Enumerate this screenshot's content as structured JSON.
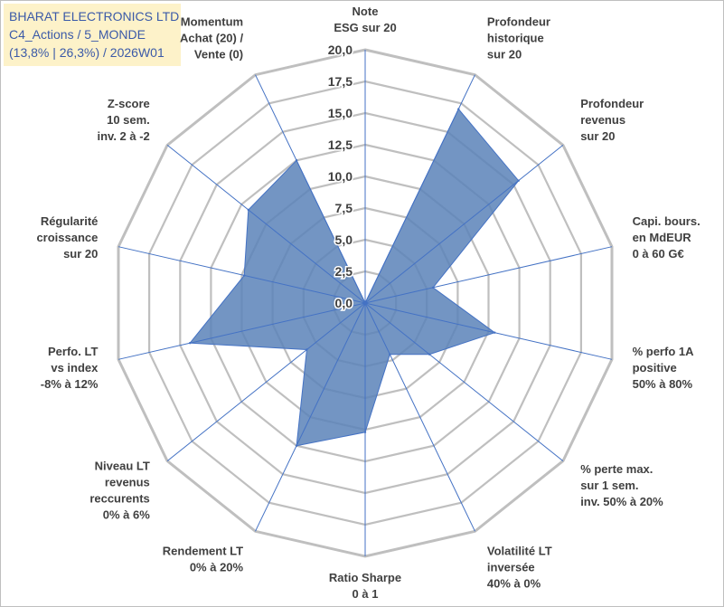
{
  "title_box": {
    "line1": "BHARAT ELECTRONICS LTD",
    "line2": "C4_Actions / 5_MONDE",
    "line3": "(13,8% | 26,3%) / 2026W01"
  },
  "colors": {
    "fill": "#5b82b8",
    "stroke": "#4472c4",
    "grid": "#bfbfbf",
    "title_bg": "#fdf2c9",
    "title_text": "#3b5aa8",
    "text": "#404040"
  },
  "chart_data": {
    "type": "radar",
    "title": "BHARAT ELECTRONICS LTD",
    "rmin": 0,
    "rmax": 20,
    "tick_step": 2.5,
    "tick_labels": [
      "0,0",
      "2,5",
      "5,0",
      "7,5",
      "10,0",
      "12,5",
      "15,0",
      "17,5",
      "20,0"
    ],
    "axes": [
      {
        "lines": [
          "Note",
          "ESG sur 20"
        ],
        "value": 0
      },
      {
        "lines": [
          "Profondeur",
          "historique",
          "sur 20"
        ],
        "value": 17
      },
      {
        "lines": [
          "Profondeur",
          "revenus",
          "sur 20"
        ],
        "value": 15.5
      },
      {
        "lines": [
          "Capi. bours.",
          "en MdEUR",
          "0 à 60 G€"
        ],
        "value": 5.5
      },
      {
        "lines": [
          "% perfo 1A",
          "positive",
          "50% à 80%"
        ],
        "value": 10.5
      },
      {
        "lines": [
          "% perte max.",
          "sur 1 sem.",
          "inv. 50% à 20%"
        ],
        "value": 6.5
      },
      {
        "lines": [
          "Volatilité LT",
          "inversée",
          "40% à 0%"
        ],
        "value": 4.5
      },
      {
        "lines": [
          "Ratio Sharpe",
          "0 à 1"
        ],
        "value": 10.2
      },
      {
        "lines": [
          "Rendement LT",
          "0% à 20%"
        ],
        "value": 12.5
      },
      {
        "lines": [
          "Niveau LT",
          "revenus",
          "reccurents",
          "0% à 6%"
        ],
        "value": 5.9
      },
      {
        "lines": [
          "Perfo. LT",
          "vs index",
          "-8% à 12%"
        ],
        "value": 14.2
      },
      {
        "lines": [
          "Régularité",
          "croissance",
          "sur 20"
        ],
        "value": 9.8
      },
      {
        "lines": [
          "Z-score",
          "10 sem.",
          "inv. 2 à -2"
        ],
        "value": 11.8
      },
      {
        "lines": [
          "Momentum",
          "Achat (20) /",
          "Vente (0)"
        ],
        "value": 12.5
      }
    ]
  }
}
